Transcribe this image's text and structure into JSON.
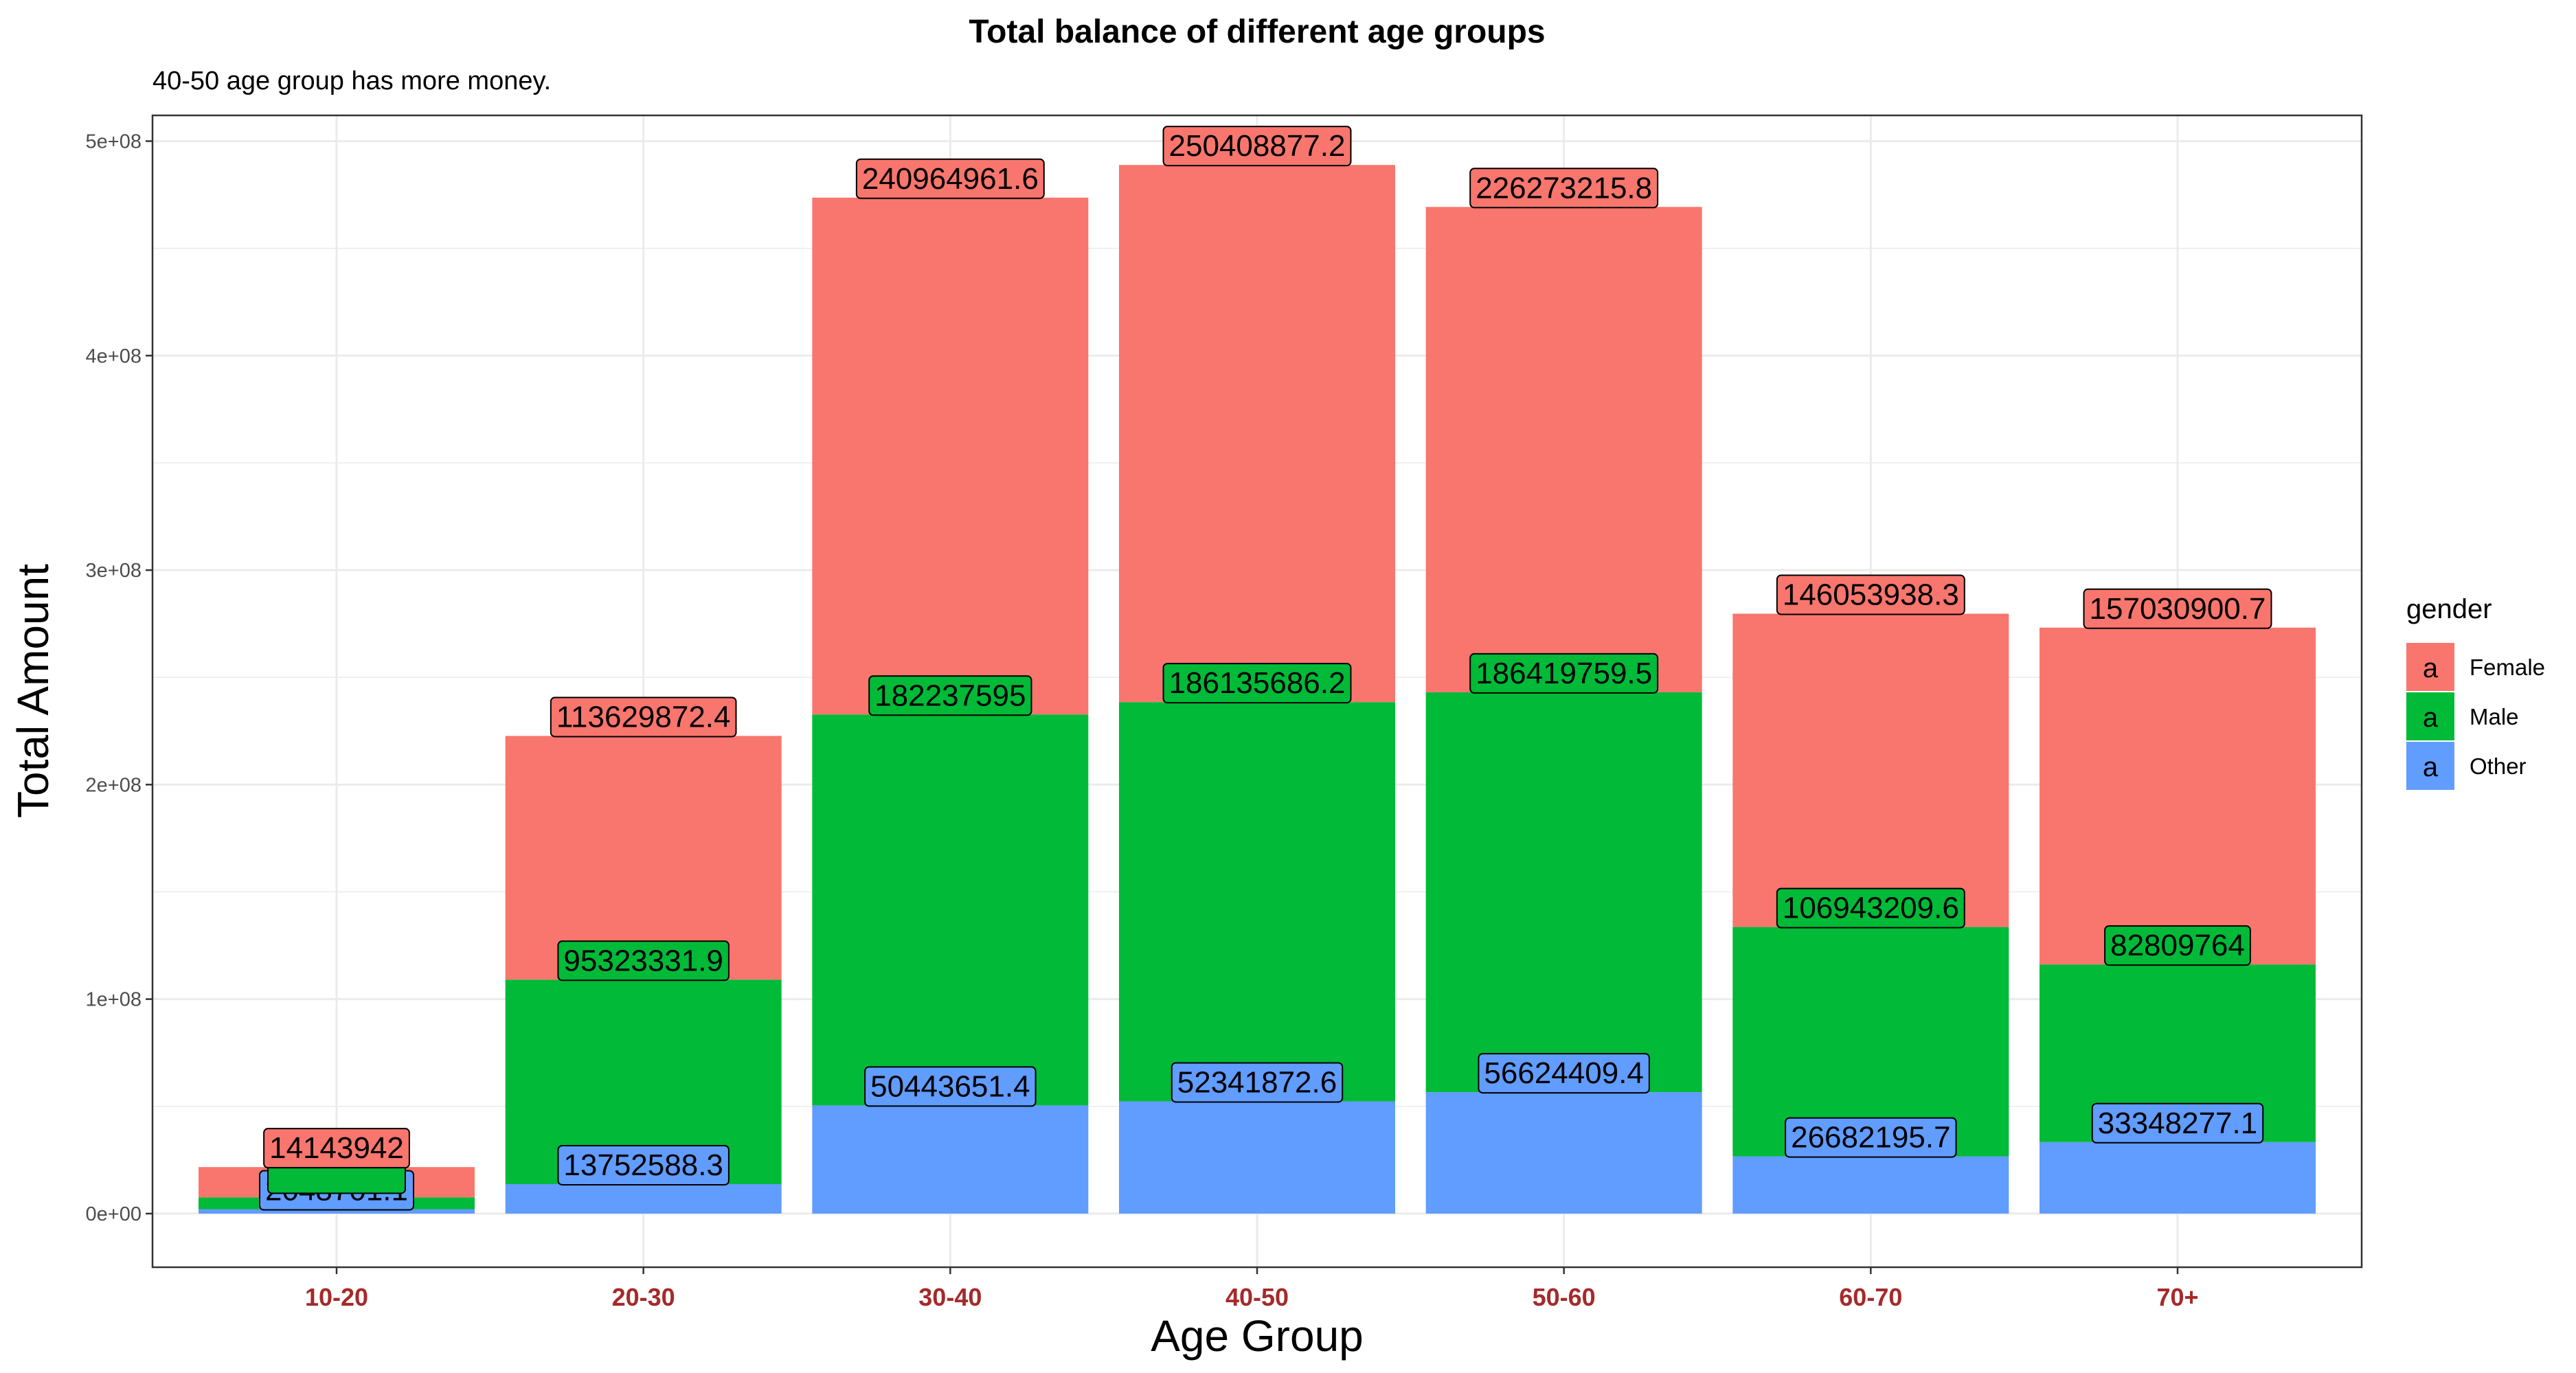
{
  "chart_data": {
    "type": "bar",
    "stacked": true,
    "title": "Total balance of different age groups",
    "subtitle": "40-50 age group has more money.",
    "xlabel": "Age Group",
    "ylabel": "Total Amount",
    "ylim": [
      -25000000,
      512000000
    ],
    "yticks": [
      0,
      100000000,
      200000000,
      300000000,
      400000000,
      500000000
    ],
    "ytick_labels": [
      "0e+00",
      "1e+08",
      "2e+08",
      "3e+08",
      "4e+08",
      "5e+08"
    ],
    "categories": [
      "10-20",
      "20-30",
      "30-40",
      "40-50",
      "50-60",
      "60-70",
      "70+"
    ],
    "series": [
      {
        "name": "Other",
        "color": "#619CFF",
        "values": [
          2048701.1,
          13752588.3,
          50443651.4,
          52341872.6,
          56624409.4,
          26682195.7,
          33348277.1
        ],
        "labels": [
          "2048701.1",
          "13752588.3",
          "50443651.4",
          "52341872.6",
          "56624409.4",
          "26682195.7",
          "33348277.1"
        ]
      },
      {
        "name": "Male",
        "color": "#00BA38",
        "values": [
          5500000,
          95323331.9,
          182237595,
          186135686.2,
          186419759.5,
          106943209.6,
          82809764
        ],
        "labels": [
          "",
          "95323331.9",
          "182237595",
          "186135686.2",
          "186419759.5",
          "106943209.6",
          "82809764"
        ]
      },
      {
        "name": "Female",
        "color": "#F8766D",
        "values": [
          14143942,
          113629872.4,
          240964961.6,
          250408877.2,
          226273215.8,
          146053938.3,
          157030900.7
        ],
        "labels": [
          "14143942",
          "113629872.4",
          "240964961.6",
          "250408877.2",
          "226273215.8",
          "146053938.3",
          "157030900.7"
        ]
      }
    ],
    "grid": true,
    "legend": {
      "title": "gender",
      "position": "right",
      "key_symbol": "a",
      "order": [
        "Female",
        "Male",
        "Other"
      ]
    }
  }
}
